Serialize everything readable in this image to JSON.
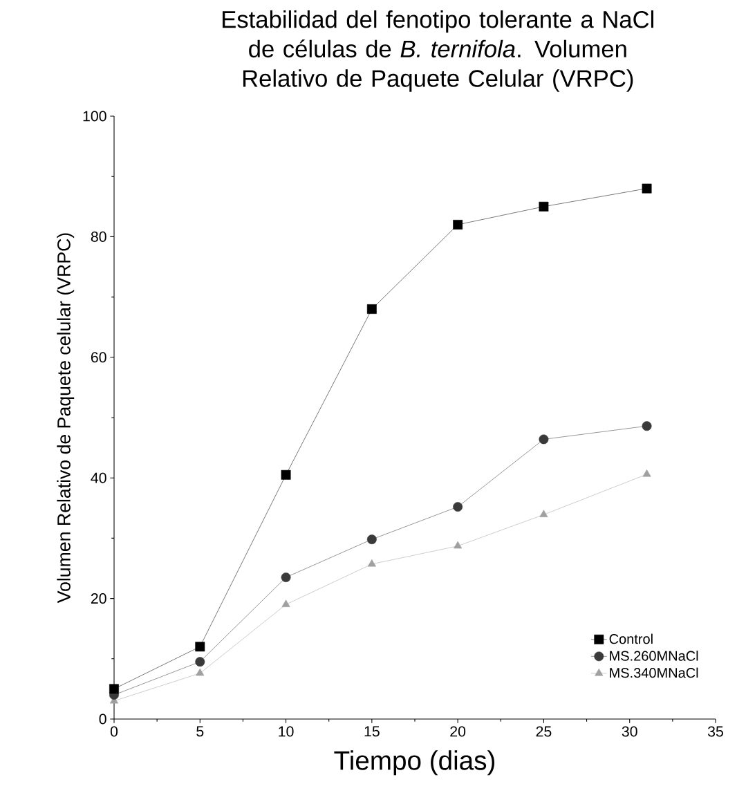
{
  "chart_data": {
    "type": "line",
    "title": "Estabilidad del fenotipo tolerante a NaCl de células de *B. ternifola*. Volumen Relativo de Paquete Celular (VRPC)",
    "xlabel": "Tiempo (dias)",
    "ylabel": "Volumen Relativo de Paquete celular (VRPC)",
    "xlim": [
      0,
      35
    ],
    "xticks": [
      0,
      5,
      10,
      15,
      20,
      25,
      30,
      35
    ],
    "ylim": [
      0,
      100
    ],
    "yticks": [
      0,
      20,
      40,
      60,
      80,
      100
    ],
    "legend": "bottom right",
    "grid": false,
    "line_style": "solid",
    "series": [
      {
        "name": "Control",
        "color": "#000000",
        "marker": "square",
        "x": [
          0,
          5,
          10,
          15,
          20,
          25,
          31
        ],
        "values": [
          5,
          12,
          40.5,
          68,
          82,
          85,
          88
        ]
      },
      {
        "name": "MS.260MNaCl",
        "color": "#3a3a3a",
        "marker": "circle",
        "x": [
          0,
          5,
          10,
          15,
          20,
          25,
          31
        ],
        "values": [
          4,
          9.5,
          23.5,
          29.8,
          35.2,
          46.4,
          48.6
        ]
      },
      {
        "name": "MS.340MNaCl",
        "color": "#a0a0a0",
        "marker": "triangle",
        "x": [
          0,
          5,
          10,
          15,
          20,
          25,
          31
        ],
        "values": [
          3,
          7.6,
          19,
          25.7,
          28.7,
          33.9,
          40.6
        ]
      }
    ]
  }
}
